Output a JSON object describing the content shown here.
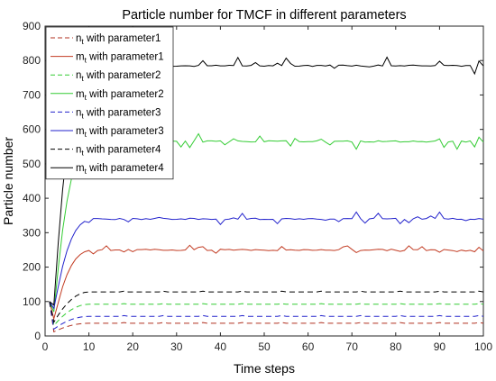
{
  "chart_data": {
    "type": "line",
    "title": "Particle number for TMCF in different parameters",
    "xlabel": "Time steps",
    "ylabel": "Particle number",
    "xlim": [
      0,
      100
    ],
    "ylim": [
      0,
      900
    ],
    "xticks": [
      0,
      10,
      20,
      30,
      40,
      50,
      60,
      70,
      80,
      90,
      100
    ],
    "yticks": [
      0,
      100,
      200,
      300,
      400,
      500,
      600,
      700,
      800,
      900
    ],
    "grid": false,
    "legend_position": "top-left",
    "series": [
      {
        "name": "n",
        "name_sub": "t",
        "name_suffix": " with parameter1",
        "color": "#b03020",
        "dash": "dashed",
        "style": "n-ramp-const",
        "start": 100,
        "dip": 12,
        "plateau": 37
      },
      {
        "name": "m",
        "name_sub": "t",
        "name_suffix": " with parameter1",
        "color": "#c23b22",
        "dash": "solid",
        "style": "m-jitter",
        "start": 100,
        "dip": 40,
        "plateau": 250,
        "noise": 15
      },
      {
        "name": "n",
        "name_sub": "t",
        "name_suffix": " with parameter2",
        "color": "#33cc33",
        "dash": "dashed",
        "style": "n-ramp-const",
        "start": 100,
        "dip": 30,
        "plateau": 92
      },
      {
        "name": "m",
        "name_sub": "t",
        "name_suffix": " with parameter2",
        "color": "#33cc33",
        "dash": "solid",
        "style": "m-jitter",
        "start": 100,
        "dip": 60,
        "plateau": 565,
        "noise": 25
      },
      {
        "name": "n",
        "name_sub": "t",
        "name_suffix": " with parameter3",
        "color": "#2222cc",
        "dash": "dashed",
        "style": "n-ramp-const",
        "start": 100,
        "dip": 20,
        "plateau": 57
      },
      {
        "name": "m",
        "name_sub": "t",
        "name_suffix": " with parameter3",
        "color": "#2222cc",
        "dash": "solid",
        "style": "m-jitter",
        "start": 100,
        "dip": 70,
        "plateau": 340,
        "noise": 20
      },
      {
        "name": "n",
        "name_sub": "t",
        "name_suffix": " with parameter4",
        "color": "#000000",
        "dash": "dashed",
        "style": "n-ramp-const",
        "start": 100,
        "dip": 40,
        "plateau": 128
      },
      {
        "name": "m",
        "name_sub": "t",
        "name_suffix": " with parameter4",
        "color": "#000000",
        "dash": "solid",
        "style": "m-jitter",
        "start": 100,
        "dip": 80,
        "plateau": 785,
        "noise": 25
      }
    ]
  }
}
